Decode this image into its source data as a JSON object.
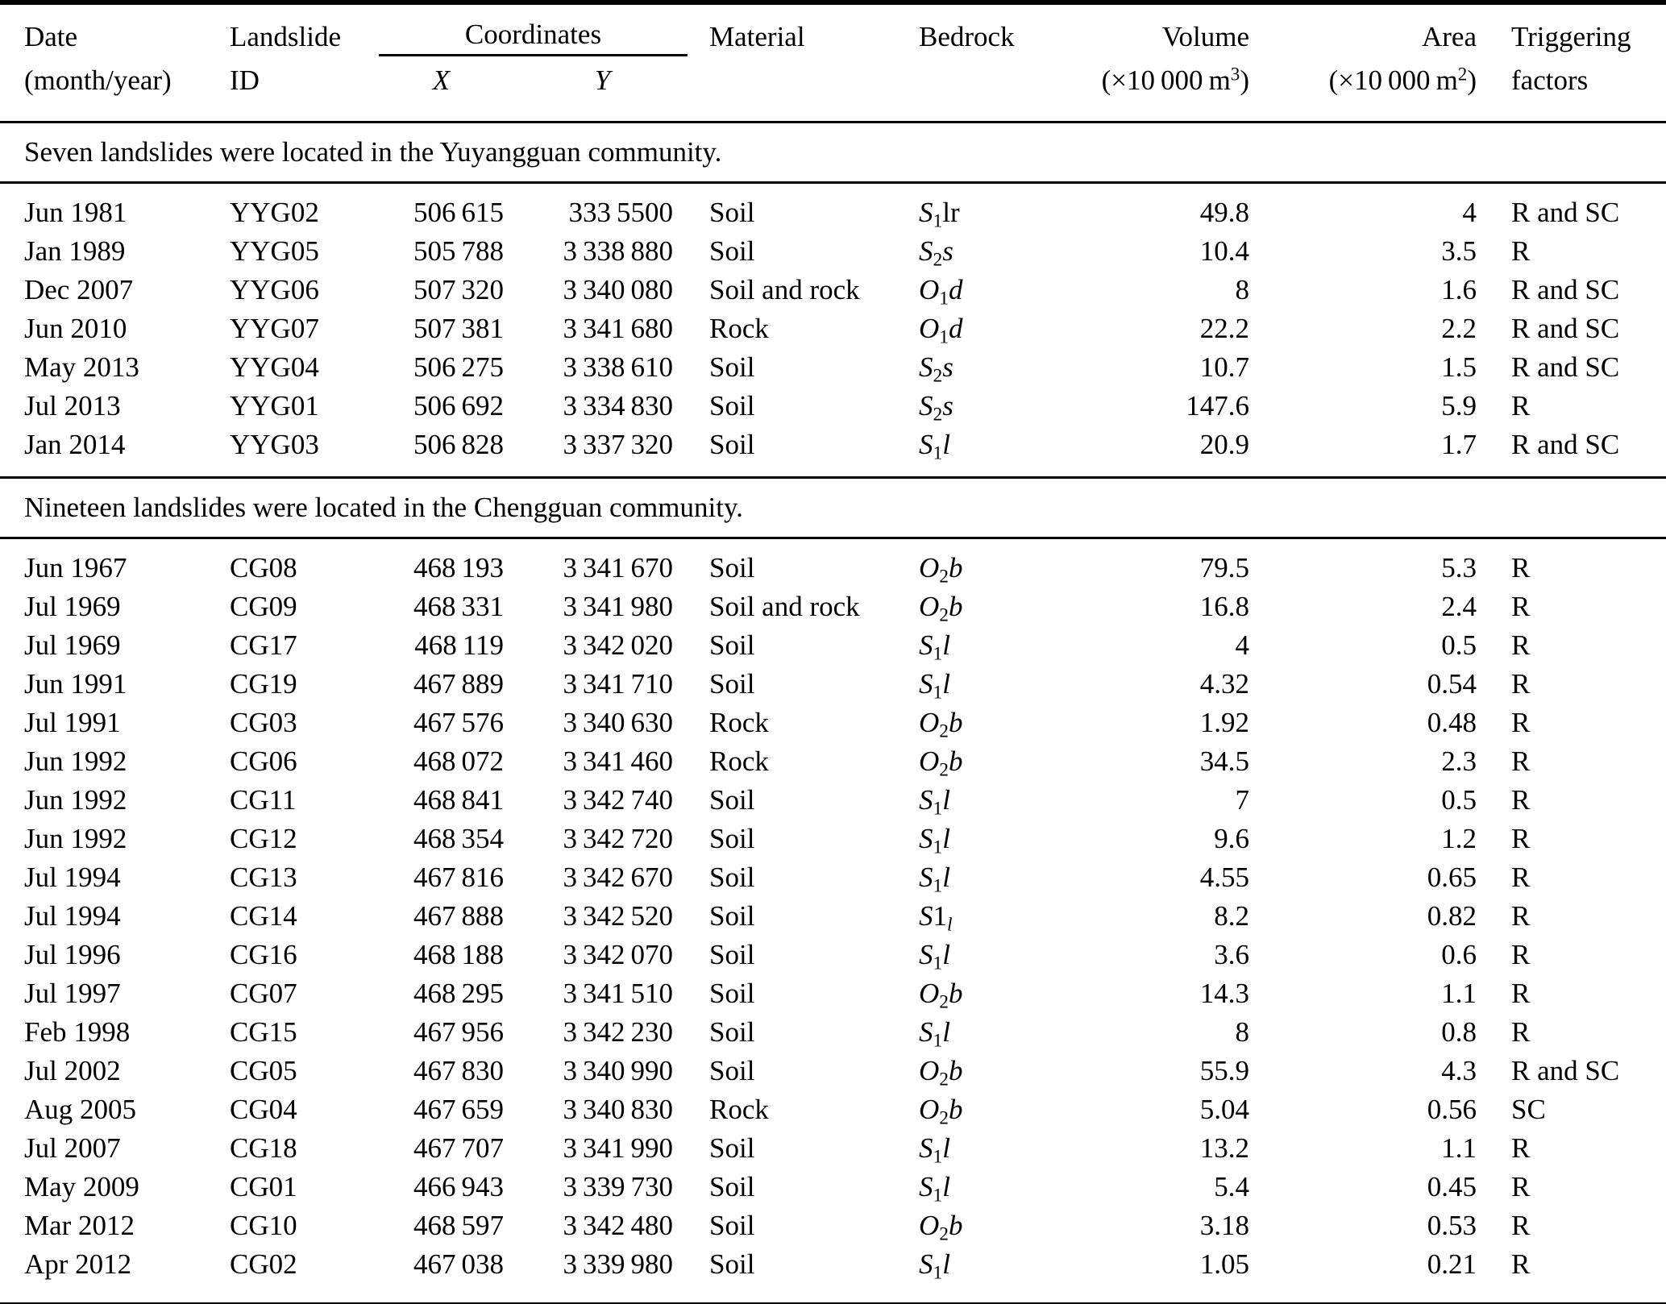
{
  "colors": {
    "text": "#000000",
    "background": "#ffffff",
    "rule": "#000000"
  },
  "table": {
    "header": {
      "date_line1": "Date",
      "date_line2": "(month/year)",
      "id_line1": "Landslide",
      "id_line2": "ID",
      "coordinates": "Coordinates",
      "x": "X",
      "y": "Y",
      "material": "Material",
      "bedrock": "Bedrock",
      "volume": "Volume",
      "volume_unit_prefix": "(×10 000 m",
      "volume_unit_sup": "3",
      "volume_unit_suffix": ")",
      "area": "Area",
      "area_unit_prefix": "(×10 000 m",
      "area_unit_sup": "2",
      "area_unit_suffix": ")",
      "triggering_line1": "Triggering",
      "triggering_line2": "factors"
    },
    "sections": [
      {
        "caption": "Seven landslides were located in the Yuyangguan community.",
        "rows": [
          {
            "date": "Jun 1981",
            "id": "YYG02",
            "x": "506 615",
            "y": "333 5500",
            "material": "Soil",
            "bedrock": [
              [
                "S",
                "i"
              ],
              [
                "1",
                "s"
              ],
              [
                "lr",
                "r"
              ]
            ],
            "volume": "49.8",
            "area": "4",
            "triggering": "R and SC"
          },
          {
            "date": "Jan 1989",
            "id": "YYG05",
            "x": "505 788",
            "y": "3 338 880",
            "material": "Soil",
            "bedrock": [
              [
                "S",
                "i"
              ],
              [
                "2",
                "s"
              ],
              [
                "s",
                "i"
              ]
            ],
            "volume": "10.4",
            "area": "3.5",
            "triggering": "R"
          },
          {
            "date": "Dec 2007",
            "id": "YYG06",
            "x": "507 320",
            "y": "3 340 080",
            "material": "Soil and rock",
            "bedrock": [
              [
                "O",
                "i"
              ],
              [
                "1",
                "s"
              ],
              [
                "d",
                "i"
              ]
            ],
            "volume": "8",
            "area": "1.6",
            "triggering": "R and SC"
          },
          {
            "date": "Jun 2010",
            "id": "YYG07",
            "x": "507 381",
            "y": "3 341 680",
            "material": "Rock",
            "bedrock": [
              [
                "O",
                "i"
              ],
              [
                "1",
                "s"
              ],
              [
                "d",
                "i"
              ]
            ],
            "volume": "22.2",
            "area": "2.2",
            "triggering": "R and SC"
          },
          {
            "date": "May 2013",
            "id": "YYG04",
            "x": "506 275",
            "y": "3 338 610",
            "material": "Soil",
            "bedrock": [
              [
                "S",
                "i"
              ],
              [
                "2",
                "s"
              ],
              [
                "s",
                "i"
              ]
            ],
            "volume": "10.7",
            "area": "1.5",
            "triggering": "R and SC"
          },
          {
            "date": "Jul 2013",
            "id": "YYG01",
            "x": "506 692",
            "y": "3 334 830",
            "material": "Soil",
            "bedrock": [
              [
                "S",
                "i"
              ],
              [
                "2",
                "s"
              ],
              [
                "s",
                "i"
              ]
            ],
            "volume": "147.6",
            "area": "5.9",
            "triggering": "R"
          },
          {
            "date": "Jan 2014",
            "id": "YYG03",
            "x": "506 828",
            "y": "3 337 320",
            "material": "Soil",
            "bedrock": [
              [
                "S",
                "i"
              ],
              [
                "1",
                "s"
              ],
              [
                "l",
                "i"
              ]
            ],
            "volume": "20.9",
            "area": "1.7",
            "triggering": "R and SC"
          }
        ]
      },
      {
        "caption": "Nineteen landslides were located in the Chengguan community.",
        "rows": [
          {
            "date": "Jun 1967",
            "id": "CG08",
            "x": "468 193",
            "y": "3 341 670",
            "material": "Soil",
            "bedrock": [
              [
                "O",
                "i"
              ],
              [
                "2",
                "s"
              ],
              [
                "b",
                "i"
              ]
            ],
            "volume": "79.5",
            "area": "5.3",
            "triggering": "R"
          },
          {
            "date": "Jul 1969",
            "id": "CG09",
            "x": "468 331",
            "y": "3 341 980",
            "material": "Soil and rock",
            "bedrock": [
              [
                "O",
                "i"
              ],
              [
                "2",
                "s"
              ],
              [
                "b",
                "i"
              ]
            ],
            "volume": "16.8",
            "area": "2.4",
            "triggering": "R"
          },
          {
            "date": "Jul 1969",
            "id": "CG17",
            "x": "468 119",
            "y": "3 342 020",
            "material": "Soil",
            "bedrock": [
              [
                "S",
                "i"
              ],
              [
                "1",
                "s"
              ],
              [
                "l",
                "i"
              ]
            ],
            "volume": "4",
            "area": "0.5",
            "triggering": "R"
          },
          {
            "date": "Jun 1991",
            "id": "CG19",
            "x": "467 889",
            "y": "3 341 710",
            "material": "Soil",
            "bedrock": [
              [
                "S",
                "i"
              ],
              [
                "1",
                "s"
              ],
              [
                "l",
                "i"
              ]
            ],
            "volume": "4.32",
            "area": "0.54",
            "triggering": "R"
          },
          {
            "date": "Jul 1991",
            "id": "CG03",
            "x": "467 576",
            "y": "3 340 630",
            "material": "Rock",
            "bedrock": [
              [
                "O",
                "i"
              ],
              [
                "2",
                "s"
              ],
              [
                "b",
                "i"
              ]
            ],
            "volume": "1.92",
            "area": "0.48",
            "triggering": "R"
          },
          {
            "date": "Jun 1992",
            "id": "CG06",
            "x": "468 072",
            "y": "3 341 460",
            "material": "Rock",
            "bedrock": [
              [
                "O",
                "i"
              ],
              [
                "2",
                "s"
              ],
              [
                "b",
                "i"
              ]
            ],
            "volume": "34.5",
            "area": "2.3",
            "triggering": "R"
          },
          {
            "date": "Jun 1992",
            "id": "CG11",
            "x": "468 841",
            "y": "3 342 740",
            "material": "Soil",
            "bedrock": [
              [
                "S",
                "i"
              ],
              [
                "1",
                "s"
              ],
              [
                "l",
                "i"
              ]
            ],
            "volume": "7",
            "area": "0.5",
            "triggering": "R"
          },
          {
            "date": "Jun 1992",
            "id": "CG12",
            "x": "468 354",
            "y": "3 342 720",
            "material": "Soil",
            "bedrock": [
              [
                "S",
                "i"
              ],
              [
                "1",
                "s"
              ],
              [
                "l",
                "i"
              ]
            ],
            "volume": "9.6",
            "area": "1.2",
            "triggering": "R"
          },
          {
            "date": "Jul 1994",
            "id": "CG13",
            "x": "467 816",
            "y": "3 342 670",
            "material": "Soil",
            "bedrock": [
              [
                "S",
                "i"
              ],
              [
                "1",
                "s"
              ],
              [
                "l",
                "i"
              ]
            ],
            "volume": "4.55",
            "area": "0.65",
            "triggering": "R"
          },
          {
            "date": "Jul 1994",
            "id": "CG14",
            "x": "467 888",
            "y": "3 342 520",
            "material": "Soil",
            "bedrock": [
              [
                "S",
                "i"
              ],
              [
                "1",
                "r"
              ],
              [
                "l",
                "si"
              ]
            ],
            "volume": "8.2",
            "area": "0.82",
            "triggering": "R"
          },
          {
            "date": "Jul 1996",
            "id": "CG16",
            "x": "468 188",
            "y": "3 342 070",
            "material": "Soil",
            "bedrock": [
              [
                "S",
                "i"
              ],
              [
                "1",
                "s"
              ],
              [
                "l",
                "i"
              ]
            ],
            "volume": "3.6",
            "area": "0.6",
            "triggering": "R"
          },
          {
            "date": "Jul 1997",
            "id": "CG07",
            "x": "468 295",
            "y": "3 341 510",
            "material": "Soil",
            "bedrock": [
              [
                "O",
                "i"
              ],
              [
                "2",
                "s"
              ],
              [
                "b",
                "i"
              ]
            ],
            "volume": "14.3",
            "area": "1.1",
            "triggering": "R"
          },
          {
            "date": "Feb 1998",
            "id": "CG15",
            "x": "467 956",
            "y": "3 342 230",
            "material": "Soil",
            "bedrock": [
              [
                "S",
                "i"
              ],
              [
                "1",
                "s"
              ],
              [
                "l",
                "i"
              ]
            ],
            "volume": "8",
            "area": "0.8",
            "triggering": "R"
          },
          {
            "date": "Jul 2002",
            "id": "CG05",
            "x": "467 830",
            "y": "3 340 990",
            "material": "Soil",
            "bedrock": [
              [
                "O",
                "i"
              ],
              [
                "2",
                "s"
              ],
              [
                "b",
                "i"
              ]
            ],
            "volume": "55.9",
            "area": "4.3",
            "triggering": "R and SC"
          },
          {
            "date": "Aug 2005",
            "id": "CG04",
            "x": "467 659",
            "y": "3 340 830",
            "material": "Rock",
            "bedrock": [
              [
                "O",
                "i"
              ],
              [
                "2",
                "s"
              ],
              [
                "b",
                "i"
              ]
            ],
            "volume": "5.04",
            "area": "0.56",
            "triggering": "SC"
          },
          {
            "date": "Jul 2007",
            "id": "CG18",
            "x": "467 707",
            "y": "3 341 990",
            "material": "Soil",
            "bedrock": [
              [
                "S",
                "i"
              ],
              [
                "1",
                "s"
              ],
              [
                "l",
                "i"
              ]
            ],
            "volume": "13.2",
            "area": "1.1",
            "triggering": "R"
          },
          {
            "date": "May 2009",
            "id": "CG01",
            "x": "466 943",
            "y": "3 339 730",
            "material": "Soil",
            "bedrock": [
              [
                "S",
                "i"
              ],
              [
                "1",
                "s"
              ],
              [
                "l",
                "i"
              ]
            ],
            "volume": "5.4",
            "area": "0.45",
            "triggering": "R"
          },
          {
            "date": "Mar 2012",
            "id": "CG10",
            "x": "468 597",
            "y": "3 342 480",
            "material": "Soil",
            "bedrock": [
              [
                "O",
                "i"
              ],
              [
                "2",
                "s"
              ],
              [
                "b",
                "i"
              ]
            ],
            "volume": "3.18",
            "area": "0.53",
            "triggering": "R"
          },
          {
            "date": "Apr 2012",
            "id": "CG02",
            "x": "467 038",
            "y": "3 339 980",
            "material": "Soil",
            "bedrock": [
              [
                "S",
                "i"
              ],
              [
                "1",
                "s"
              ],
              [
                "l",
                "i"
              ]
            ],
            "volume": "1.05",
            "area": "0.21",
            "triggering": "R"
          }
        ]
      }
    ]
  }
}
